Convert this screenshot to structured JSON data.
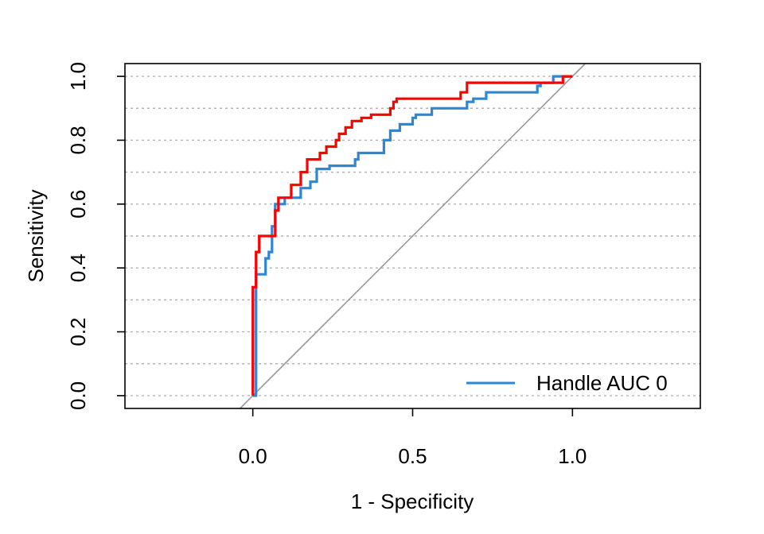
{
  "chart_data": {
    "type": "line",
    "title": "",
    "xlabel": "1 - Specificity",
    "ylabel": "Sensitivity",
    "xlim": [
      -0.4,
      1.4
    ],
    "ylim": [
      -0.04,
      1.04
    ],
    "x_ticks": [
      {
        "value": 0.0,
        "label": "0.0"
      },
      {
        "value": 0.5,
        "label": "0.5"
      },
      {
        "value": 1.0,
        "label": "1.0"
      }
    ],
    "y_ticks": [
      {
        "value": 0.0,
        "label": "0.0"
      },
      {
        "value": 0.2,
        "label": "0.2"
      },
      {
        "value": 0.4,
        "label": "0.4"
      },
      {
        "value": 0.6,
        "label": "0.6"
      },
      {
        "value": 0.8,
        "label": "0.8"
      },
      {
        "value": 1.0,
        "label": "1.0"
      }
    ],
    "grid": {
      "horizontal": true,
      "style": "dotted",
      "y_values": [
        0.0,
        0.1,
        0.2,
        0.3,
        0.4,
        0.5,
        0.6,
        0.7,
        0.8,
        0.9,
        1.0
      ]
    },
    "reference_line": {
      "from": [
        -0.04,
        -0.04
      ],
      "to": [
        1.04,
        1.04
      ],
      "color": "#999999"
    },
    "legend": {
      "position": "bottom-right",
      "entries": [
        {
          "label": "Handle AUC 0",
          "color": "#2e86d6"
        }
      ]
    },
    "series": [
      {
        "color": "#2e86d6",
        "points": [
          [
            0,
            0
          ],
          [
            0.01,
            0
          ],
          [
            0.01,
            0.38
          ],
          [
            0.04,
            0.38
          ],
          [
            0.04,
            0.43
          ],
          [
            0.05,
            0.43
          ],
          [
            0.05,
            0.45
          ],
          [
            0.06,
            0.45
          ],
          [
            0.06,
            0.53
          ],
          [
            0.07,
            0.53
          ],
          [
            0.07,
            0.6
          ],
          [
            0.1,
            0.6
          ],
          [
            0.1,
            0.62
          ],
          [
            0.15,
            0.62
          ],
          [
            0.15,
            0.65
          ],
          [
            0.18,
            0.65
          ],
          [
            0.18,
            0.67
          ],
          [
            0.2,
            0.67
          ],
          [
            0.2,
            0.71
          ],
          [
            0.24,
            0.71
          ],
          [
            0.24,
            0.72
          ],
          [
            0.32,
            0.72
          ],
          [
            0.32,
            0.74
          ],
          [
            0.33,
            0.74
          ],
          [
            0.33,
            0.76
          ],
          [
            0.41,
            0.76
          ],
          [
            0.41,
            0.8
          ],
          [
            0.43,
            0.8
          ],
          [
            0.43,
            0.83
          ],
          [
            0.46,
            0.83
          ],
          [
            0.46,
            0.85
          ],
          [
            0.5,
            0.85
          ],
          [
            0.5,
            0.87
          ],
          [
            0.51,
            0.87
          ],
          [
            0.51,
            0.88
          ],
          [
            0.56,
            0.88
          ],
          [
            0.56,
            0.9
          ],
          [
            0.67,
            0.9
          ],
          [
            0.67,
            0.92
          ],
          [
            0.69,
            0.92
          ],
          [
            0.69,
            0.93
          ],
          [
            0.73,
            0.93
          ],
          [
            0.73,
            0.95
          ],
          [
            0.89,
            0.95
          ],
          [
            0.89,
            0.97
          ],
          [
            0.9,
            0.97
          ],
          [
            0.9,
            0.98
          ],
          [
            0.94,
            0.98
          ],
          [
            0.94,
            1.0
          ],
          [
            1.0,
            1.0
          ]
        ]
      },
      {
        "color": "#ff0000",
        "points": [
          [
            0,
            0
          ],
          [
            0,
            0.34
          ],
          [
            0.01,
            0.34
          ],
          [
            0.01,
            0.45
          ],
          [
            0.02,
            0.45
          ],
          [
            0.02,
            0.5
          ],
          [
            0.07,
            0.5
          ],
          [
            0.07,
            0.58
          ],
          [
            0.08,
            0.58
          ],
          [
            0.08,
            0.62
          ],
          [
            0.12,
            0.62
          ],
          [
            0.12,
            0.66
          ],
          [
            0.15,
            0.66
          ],
          [
            0.15,
            0.7
          ],
          [
            0.17,
            0.7
          ],
          [
            0.17,
            0.74
          ],
          [
            0.21,
            0.74
          ],
          [
            0.21,
            0.76
          ],
          [
            0.23,
            0.76
          ],
          [
            0.23,
            0.78
          ],
          [
            0.26,
            0.78
          ],
          [
            0.26,
            0.8
          ],
          [
            0.27,
            0.8
          ],
          [
            0.27,
            0.82
          ],
          [
            0.29,
            0.82
          ],
          [
            0.29,
            0.84
          ],
          [
            0.31,
            0.84
          ],
          [
            0.31,
            0.86
          ],
          [
            0.34,
            0.86
          ],
          [
            0.34,
            0.87
          ],
          [
            0.37,
            0.87
          ],
          [
            0.37,
            0.88
          ],
          [
            0.43,
            0.88
          ],
          [
            0.43,
            0.9
          ],
          [
            0.44,
            0.9
          ],
          [
            0.44,
            0.92
          ],
          [
            0.45,
            0.92
          ],
          [
            0.45,
            0.93
          ],
          [
            0.65,
            0.93
          ],
          [
            0.65,
            0.95
          ],
          [
            0.67,
            0.95
          ],
          [
            0.67,
            0.98
          ],
          [
            0.97,
            0.98
          ],
          [
            0.97,
            1.0
          ],
          [
            1.0,
            1.0
          ]
        ]
      }
    ]
  }
}
